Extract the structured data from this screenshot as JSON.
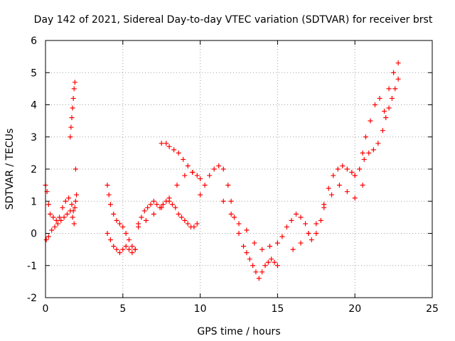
{
  "chart_data": {
    "type": "scatter",
    "title": "Day 142 of 2021, Sidereal Day-to-day VTEC variation (SDTVAR) for receiver brst",
    "xlabel": "GPS time / hours",
    "ylabel": "SDTVAR / TECUs",
    "xlim": [
      0,
      25
    ],
    "ylim": [
      -2,
      6
    ],
    "xticks": [
      "0",
      "5",
      "10",
      "15",
      "20",
      "25"
    ],
    "yticks": [
      "-2",
      "-1",
      "0",
      "1",
      "2",
      "3",
      "4",
      "5",
      "6"
    ],
    "grid": true,
    "marker": "plus",
    "series": [
      {
        "name": "SDTVAR",
        "color": "#ff0000",
        "x": [
          0.0,
          0.1,
          0.2,
          0.3,
          0.5,
          0.7,
          0.9,
          1.1,
          1.3,
          1.5,
          1.7,
          1.8,
          1.9,
          1.95,
          2.0,
          0.05,
          0.2,
          0.4,
          0.6,
          0.8,
          1.0,
          1.2,
          1.4,
          1.6,
          1.75,
          1.85,
          1.6,
          1.65,
          1.7,
          1.75,
          1.8,
          1.85,
          1.9,
          1.95,
          4.0,
          4.1,
          4.2,
          4.4,
          4.6,
          4.8,
          5.0,
          5.2,
          5.4,
          5.6,
          5.8,
          6.0,
          6.2,
          6.4,
          6.6,
          6.8,
          7.0,
          7.2,
          7.4,
          7.6,
          7.8,
          8.0,
          8.2,
          8.4,
          8.6,
          8.8,
          9.0,
          9.2,
          9.4,
          9.6,
          9.8,
          4.0,
          4.2,
          4.4,
          4.6,
          4.8,
          5.0,
          5.2,
          5.4,
          5.6,
          5.8,
          6.0,
          6.5,
          7.0,
          7.5,
          8.0,
          8.5,
          9.0,
          9.5,
          7.5,
          7.8,
          8.0,
          8.3,
          8.6,
          8.9,
          9.2,
          9.5,
          9.8,
          10.0,
          10.0,
          10.3,
          10.6,
          10.9,
          11.2,
          11.5,
          11.8,
          12.0,
          12.2,
          12.5,
          12.8,
          13.0,
          13.2,
          13.4,
          13.6,
          13.8,
          14.0,
          14.2,
          14.4,
          14.6,
          14.8,
          15.0,
          11.5,
          12.0,
          12.5,
          13.0,
          13.5,
          14.0,
          14.5,
          15.0,
          15.0,
          15.3,
          15.6,
          15.9,
          16.2,
          16.5,
          16.8,
          17.0,
          17.2,
          17.5,
          17.8,
          18.0,
          18.3,
          18.6,
          18.9,
          19.2,
          19.5,
          19.8,
          20.0,
          16.0,
          16.5,
          17.0,
          17.5,
          18.0,
          18.5,
          19.0,
          19.5,
          20.0,
          20.5,
          20.0,
          20.3,
          20.6,
          20.9,
          21.2,
          21.5,
          21.8,
          22.0,
          22.2,
          22.4,
          22.6,
          22.8,
          20.5,
          20.7,
          21.0,
          21.3,
          21.6,
          21.9,
          22.2,
          22.5,
          22.8
        ],
        "y": [
          1.5,
          1.3,
          0.9,
          0.6,
          0.5,
          0.4,
          0.5,
          0.8,
          1.0,
          1.1,
          0.9,
          0.7,
          0.8,
          1.0,
          1.2,
          -0.2,
          -0.1,
          0.1,
          0.2,
          0.3,
          0.4,
          0.5,
          0.6,
          0.7,
          0.5,
          0.3,
          3.0,
          3.3,
          3.6,
          3.9,
          4.2,
          4.5,
          4.7,
          2.0,
          1.5,
          1.2,
          0.9,
          0.6,
          0.4,
          0.3,
          0.2,
          0.0,
          -0.2,
          -0.4,
          -0.5,
          0.3,
          0.5,
          0.7,
          0.8,
          0.9,
          1.0,
          0.9,
          0.8,
          0.9,
          1.0,
          1.0,
          0.9,
          0.8,
          0.6,
          0.5,
          0.4,
          0.3,
          0.2,
          0.2,
          0.3,
          0.0,
          -0.2,
          -0.4,
          -0.5,
          -0.6,
          -0.5,
          -0.4,
          -0.5,
          -0.6,
          -0.5,
          0.2,
          0.4,
          0.6,
          0.8,
          1.1,
          1.5,
          1.8,
          1.9,
          2.8,
          2.8,
          2.7,
          2.6,
          2.5,
          2.3,
          2.1,
          1.9,
          1.8,
          1.7,
          1.2,
          1.5,
          1.8,
          2.0,
          2.1,
          2.0,
          1.5,
          1.0,
          0.5,
          0.0,
          -0.4,
          -0.6,
          -0.8,
          -1.0,
          -1.2,
          -1.4,
          -1.2,
          -1.0,
          -0.9,
          -0.8,
          -0.9,
          -1.0,
          1.0,
          0.6,
          0.3,
          0.1,
          -0.3,
          -0.5,
          -0.4,
          -0.3,
          -0.3,
          -0.1,
          0.2,
          0.4,
          0.6,
          0.5,
          0.3,
          0.0,
          -0.2,
          0.0,
          0.4,
          0.9,
          1.4,
          1.8,
          2.0,
          2.1,
          2.0,
          1.9,
          1.8,
          -0.5,
          -0.3,
          0.0,
          0.3,
          0.8,
          1.2,
          1.5,
          1.3,
          1.1,
          1.5,
          1.8,
          2.0,
          2.3,
          2.5,
          2.6,
          2.8,
          3.2,
          3.6,
          3.9,
          4.2,
          4.5,
          4.8,
          2.5,
          3.0,
          3.5,
          4.0,
          4.2,
          3.8,
          4.5,
          5.0,
          5.3
        ]
      }
    ]
  }
}
